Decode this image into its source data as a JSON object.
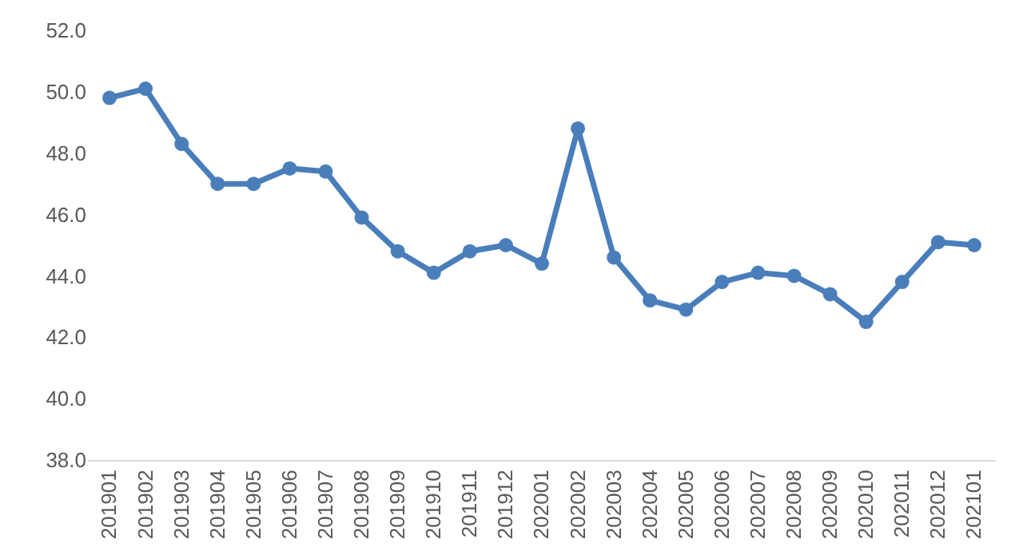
{
  "chart_data": {
    "type": "line",
    "categories": [
      "201901",
      "201902",
      "201903",
      "201904",
      "201905",
      "201906",
      "201907",
      "201908",
      "201909",
      "201910",
      "201911",
      "201912",
      "202001",
      "202002",
      "202003",
      "202004",
      "202005",
      "202006",
      "202007",
      "202008",
      "202009",
      "202010",
      "202011",
      "202012",
      "202101"
    ],
    "series": [
      {
        "color": "#4a7ebb",
        "values": [
          49.8,
          50.1,
          48.3,
          47.0,
          47.0,
          47.5,
          47.4,
          45.9,
          44.8,
          44.1,
          44.8,
          45.0,
          44.4,
          48.8,
          44.6,
          43.2,
          42.9,
          43.8,
          44.1,
          44.0,
          43.4,
          42.5,
          43.8,
          45.1,
          45.0
        ]
      }
    ],
    "ylim": [
      38,
      52
    ],
    "yticks": [
      {
        "value": 38,
        "label": "38.0"
      },
      {
        "value": 40,
        "label": "40.0"
      },
      {
        "value": 42,
        "label": "42.0"
      },
      {
        "value": 44,
        "label": "44.0"
      },
      {
        "value": 46,
        "label": "46.0"
      },
      {
        "value": 48,
        "label": "48.0"
      },
      {
        "value": 50,
        "label": "50.0"
      },
      {
        "value": 52,
        "label": "52.0"
      }
    ],
    "grid": false,
    "marker": "circle",
    "line_style": "solid",
    "legend": false
  }
}
